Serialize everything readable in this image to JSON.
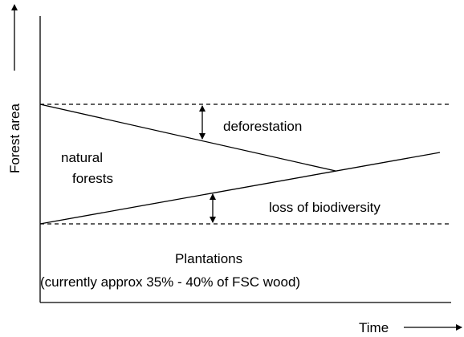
{
  "axes": {
    "y_label": "Forest area",
    "x_label": "Time"
  },
  "labels": {
    "deforestation": "deforestation",
    "natural": "natural",
    "forests": "forests",
    "biodiversity": "loss of biodiversity",
    "plantations": "Plantations",
    "note": "(currently approx 35% - 40% of FSC wood)"
  }
}
